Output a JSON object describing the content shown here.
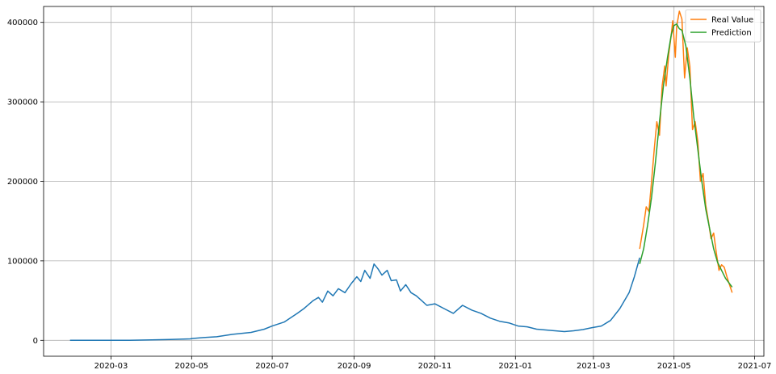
{
  "chart_data": {
    "type": "line",
    "title": "",
    "xlabel": "",
    "ylabel": "",
    "x_axis": {
      "type": "date",
      "range": [
        "2020-01-10",
        "2021-07-08"
      ],
      "ticks": [
        "2020-03-01",
        "2020-05-01",
        "2020-07-01",
        "2020-09-01",
        "2020-11-01",
        "2021-01-01",
        "2021-03-01",
        "2021-05-01",
        "2021-07-01"
      ],
      "tick_labels": [
        "2020-03",
        "2020-05",
        "2020-07",
        "2020-09",
        "2020-11",
        "2021-01",
        "2021-03",
        "2021-05",
        "2021-07"
      ]
    },
    "y_axis": {
      "range": [
        -20000,
        420000
      ],
      "ticks": [
        0,
        100000,
        200000,
        300000,
        400000
      ],
      "tick_labels": [
        "0",
        "100000",
        "200000",
        "300000",
        "400000"
      ]
    },
    "grid": true,
    "legend": {
      "placement": "top-right"
    },
    "series": [
      {
        "name": "",
        "color": "#1f77b4",
        "points": [
          [
            "2020-01-30",
            0
          ],
          [
            "2020-02-15",
            0
          ],
          [
            "2020-03-01",
            0
          ],
          [
            "2020-03-15",
            100
          ],
          [
            "2020-04-01",
            500
          ],
          [
            "2020-04-15",
            1000
          ],
          [
            "2020-04-30",
            1800
          ],
          [
            "2020-05-01",
            2300
          ],
          [
            "2020-05-10",
            3500
          ],
          [
            "2020-05-20",
            4500
          ],
          [
            "2020-06-01",
            7500
          ],
          [
            "2020-06-15",
            10000
          ],
          [
            "2020-06-25",
            14000
          ],
          [
            "2020-07-01",
            18000
          ],
          [
            "2020-07-10",
            23000
          ],
          [
            "2020-07-20",
            34000
          ],
          [
            "2020-07-25",
            40000
          ],
          [
            "2020-08-01",
            50000
          ],
          [
            "2020-08-05",
            54000
          ],
          [
            "2020-08-08",
            48000
          ],
          [
            "2020-08-12",
            62000
          ],
          [
            "2020-08-16",
            56000
          ],
          [
            "2020-08-20",
            65000
          ],
          [
            "2020-08-25",
            60000
          ],
          [
            "2020-08-30",
            72000
          ],
          [
            "2020-09-03",
            80000
          ],
          [
            "2020-09-06",
            74000
          ],
          [
            "2020-09-09",
            88000
          ],
          [
            "2020-09-13",
            78000
          ],
          [
            "2020-09-16",
            96000
          ],
          [
            "2020-09-19",
            90000
          ],
          [
            "2020-09-22",
            82000
          ],
          [
            "2020-09-26",
            88000
          ],
          [
            "2020-09-29",
            75000
          ],
          [
            "2020-10-03",
            76000
          ],
          [
            "2020-10-06",
            62000
          ],
          [
            "2020-10-10",
            70000
          ],
          [
            "2020-10-14",
            60000
          ],
          [
            "2020-10-18",
            56000
          ],
          [
            "2020-10-22",
            50000
          ],
          [
            "2020-10-26",
            44000
          ],
          [
            "2020-11-01",
            46000
          ],
          [
            "2020-11-08",
            40000
          ],
          [
            "2020-11-15",
            34000
          ],
          [
            "2020-11-22",
            44000
          ],
          [
            "2020-11-29",
            38000
          ],
          [
            "2020-12-06",
            34000
          ],
          [
            "2020-12-13",
            28000
          ],
          [
            "2020-12-20",
            24000
          ],
          [
            "2020-12-27",
            22000
          ],
          [
            "2021-01-03",
            18000
          ],
          [
            "2021-01-10",
            17000
          ],
          [
            "2021-01-17",
            14000
          ],
          [
            "2021-01-24",
            13000
          ],
          [
            "2021-01-31",
            12000
          ],
          [
            "2021-02-07",
            11000
          ],
          [
            "2021-02-14",
            12000
          ],
          [
            "2021-02-21",
            13500
          ],
          [
            "2021-02-28",
            16000
          ],
          [
            "2021-03-07",
            18000
          ],
          [
            "2021-03-14",
            25000
          ],
          [
            "2021-03-21",
            40000
          ],
          [
            "2021-03-28",
            60000
          ],
          [
            "2021-04-01",
            80000
          ],
          [
            "2021-04-05",
            104000
          ]
        ]
      },
      {
        "name": "Real Value",
        "color": "#ff7f0e",
        "points": [
          [
            "2021-04-05",
            115000
          ],
          [
            "2021-04-08",
            145000
          ],
          [
            "2021-04-10",
            168000
          ],
          [
            "2021-04-12",
            162000
          ],
          [
            "2021-04-14",
            200000
          ],
          [
            "2021-04-16",
            240000
          ],
          [
            "2021-04-18",
            275000
          ],
          [
            "2021-04-20",
            258000
          ],
          [
            "2021-04-22",
            320000
          ],
          [
            "2021-04-24",
            345000
          ],
          [
            "2021-04-25",
            320000
          ],
          [
            "2021-04-27",
            360000
          ],
          [
            "2021-04-29",
            385000
          ],
          [
            "2021-04-30",
            402000
          ],
          [
            "2021-05-02",
            356000
          ],
          [
            "2021-05-03",
            395000
          ],
          [
            "2021-05-05",
            414000
          ],
          [
            "2021-05-07",
            404000
          ],
          [
            "2021-05-09",
            330000
          ],
          [
            "2021-05-11",
            368000
          ],
          [
            "2021-05-13",
            345000
          ],
          [
            "2021-05-15",
            265000
          ],
          [
            "2021-05-17",
            275000
          ],
          [
            "2021-05-19",
            250000
          ],
          [
            "2021-05-21",
            200000
          ],
          [
            "2021-05-23",
            210000
          ],
          [
            "2021-05-25",
            170000
          ],
          [
            "2021-05-27",
            150000
          ],
          [
            "2021-05-29",
            128000
          ],
          [
            "2021-05-31",
            135000
          ],
          [
            "2021-06-02",
            110000
          ],
          [
            "2021-06-04",
            88000
          ],
          [
            "2021-06-06",
            95000
          ],
          [
            "2021-06-08",
            92000
          ],
          [
            "2021-06-10",
            80000
          ],
          [
            "2021-06-12",
            70000
          ],
          [
            "2021-06-14",
            60000
          ]
        ]
      },
      {
        "name": "Prediction",
        "color": "#2ca02c",
        "points": [
          [
            "2021-04-05",
            96000
          ],
          [
            "2021-04-08",
            115000
          ],
          [
            "2021-04-11",
            145000
          ],
          [
            "2021-04-14",
            180000
          ],
          [
            "2021-04-17",
            225000
          ],
          [
            "2021-04-20",
            275000
          ],
          [
            "2021-04-23",
            320000
          ],
          [
            "2021-04-26",
            355000
          ],
          [
            "2021-04-29",
            385000
          ],
          [
            "2021-05-01",
            396000
          ],
          [
            "2021-05-03",
            398000
          ],
          [
            "2021-05-05",
            392000
          ],
          [
            "2021-05-07",
            390000
          ],
          [
            "2021-05-10",
            370000
          ],
          [
            "2021-05-13",
            330000
          ],
          [
            "2021-05-16",
            280000
          ],
          [
            "2021-05-19",
            240000
          ],
          [
            "2021-05-22",
            200000
          ],
          [
            "2021-05-25",
            165000
          ],
          [
            "2021-05-28",
            140000
          ],
          [
            "2021-05-31",
            115000
          ],
          [
            "2021-06-03",
            98000
          ],
          [
            "2021-06-06",
            88000
          ],
          [
            "2021-06-09",
            78000
          ],
          [
            "2021-06-14",
            67000
          ]
        ]
      }
    ]
  }
}
